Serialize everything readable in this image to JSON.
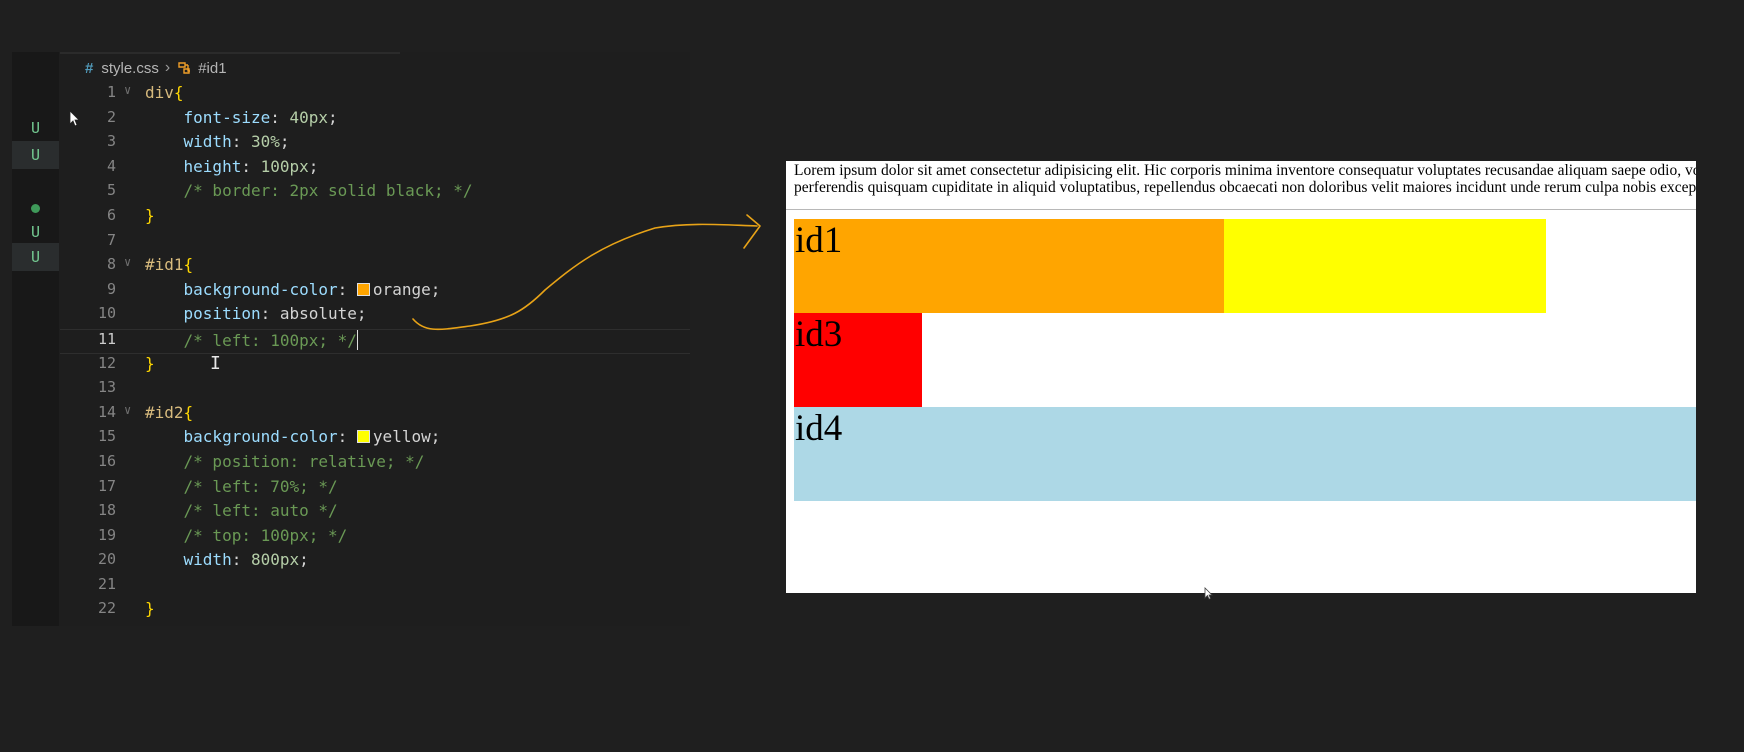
{
  "editor": {
    "breadcrumb": {
      "file": "style.css",
      "symbol": "#id1"
    },
    "scm_markers": [
      "U",
      "U",
      "U",
      "U"
    ],
    "lines": [
      {
        "n": "1",
        "fold": true,
        "parts": [
          [
            "sel",
            "div"
          ],
          [
            "brace",
            "{"
          ]
        ]
      },
      {
        "n": "2",
        "fold": false,
        "parts": [
          [
            "ind",
            "    "
          ],
          [
            "prop",
            "font-size"
          ],
          [
            "pun",
            ": "
          ],
          [
            "num",
            "40px"
          ],
          [
            "pun",
            ";"
          ]
        ]
      },
      {
        "n": "3",
        "fold": false,
        "parts": [
          [
            "ind",
            "    "
          ],
          [
            "prop",
            "width"
          ],
          [
            "pun",
            ": "
          ],
          [
            "num",
            "30%"
          ],
          [
            "pun",
            ";"
          ]
        ]
      },
      {
        "n": "4",
        "fold": false,
        "parts": [
          [
            "ind",
            "    "
          ],
          [
            "prop",
            "height"
          ],
          [
            "pun",
            ": "
          ],
          [
            "num",
            "100px"
          ],
          [
            "pun",
            ";"
          ]
        ]
      },
      {
        "n": "5",
        "fold": false,
        "parts": [
          [
            "ind",
            "    "
          ],
          [
            "com",
            "/* border: 2px solid black; */"
          ]
        ]
      },
      {
        "n": "6",
        "fold": false,
        "parts": [
          [
            "brace",
            "}"
          ]
        ]
      },
      {
        "n": "7",
        "fold": false,
        "parts": []
      },
      {
        "n": "8",
        "fold": true,
        "parts": [
          [
            "sel",
            "#id1"
          ],
          [
            "brace",
            "{"
          ]
        ]
      },
      {
        "n": "9",
        "fold": false,
        "parts": [
          [
            "ind",
            "    "
          ],
          [
            "prop",
            "background-color"
          ],
          [
            "pun",
            ": "
          ],
          [
            "swatch",
            "#ffa500"
          ],
          [
            "val",
            "orange"
          ],
          [
            "pun",
            ";"
          ]
        ]
      },
      {
        "n": "10",
        "fold": false,
        "parts": [
          [
            "ind",
            "    "
          ],
          [
            "prop",
            "position"
          ],
          [
            "pun",
            ": "
          ],
          [
            "val",
            "absolute"
          ],
          [
            "pun",
            ";"
          ]
        ]
      },
      {
        "n": "11",
        "fold": false,
        "current": true,
        "parts": [
          [
            "ind",
            "    "
          ],
          [
            "com",
            "/* left: 100px; */"
          ],
          [
            "caret",
            ""
          ]
        ]
      },
      {
        "n": "12",
        "fold": false,
        "parts": [
          [
            "brace",
            "}"
          ]
        ]
      },
      {
        "n": "13",
        "fold": false,
        "parts": []
      },
      {
        "n": "14",
        "fold": true,
        "parts": [
          [
            "sel",
            "#id2"
          ],
          [
            "brace",
            "{"
          ]
        ]
      },
      {
        "n": "15",
        "fold": false,
        "parts": [
          [
            "ind",
            "    "
          ],
          [
            "prop",
            "background-color"
          ],
          [
            "pun",
            ": "
          ],
          [
            "swatch",
            "#ffff00"
          ],
          [
            "val",
            "yellow"
          ],
          [
            "pun",
            ";"
          ]
        ]
      },
      {
        "n": "16",
        "fold": false,
        "parts": [
          [
            "ind",
            "    "
          ],
          [
            "com",
            "/* position: relative; */"
          ]
        ]
      },
      {
        "n": "17",
        "fold": false,
        "parts": [
          [
            "ind",
            "    "
          ],
          [
            "com",
            "/* left: 70%; */"
          ]
        ]
      },
      {
        "n": "18",
        "fold": false,
        "parts": [
          [
            "ind",
            "    "
          ],
          [
            "com",
            "/* left: auto */"
          ]
        ]
      },
      {
        "n": "19",
        "fold": false,
        "parts": [
          [
            "ind",
            "    "
          ],
          [
            "com",
            "/* top: 100px; */"
          ]
        ]
      },
      {
        "n": "20",
        "fold": false,
        "parts": [
          [
            "ind",
            "    "
          ],
          [
            "prop",
            "width"
          ],
          [
            "pun",
            ": "
          ],
          [
            "num",
            "800px"
          ],
          [
            "pun",
            ";"
          ]
        ]
      },
      {
        "n": "21",
        "fold": false,
        "parts": []
      },
      {
        "n": "22",
        "fold": false,
        "parts": [
          [
            "brace",
            "}"
          ]
        ]
      }
    ]
  },
  "preview": {
    "lorem_line1": "Lorem ipsum dolor sit amet consectetur adipisicing elit. Hic corporis minima inventore consequatur voluptates recusandae aliquam saepe odio, voluptatum",
    "lorem_line2": "perferendis quisquam cupiditate in aliquid voluptatibus, repellendus obcaecati non doloribus velit maiores incidunt unde rerum culpa nobis excepturi atque",
    "boxes": {
      "id1": "id1",
      "id2": "",
      "id3": "id3",
      "id4": "id4"
    }
  },
  "colors": {
    "orange": "#ffa500",
    "yellow": "#ffff00",
    "red": "#ff0000",
    "lightblue": "#add8e6",
    "annotation": "#e8a317"
  }
}
